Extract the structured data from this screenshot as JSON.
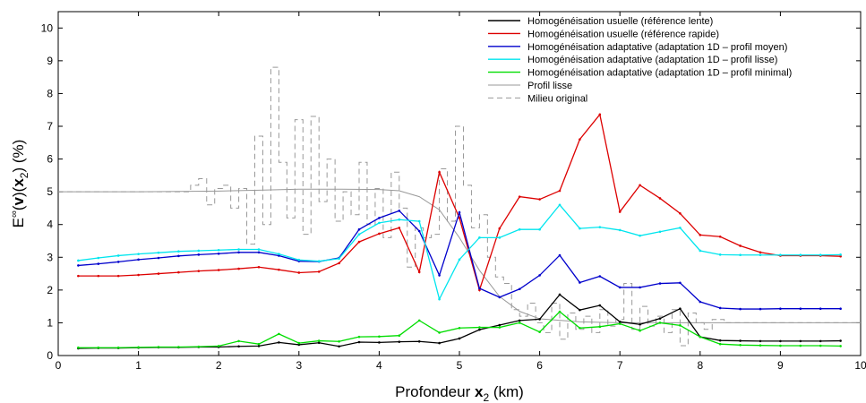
{
  "chart_data": {
    "type": "line",
    "xlabel": "Profondeur x2 (km)",
    "ylabel": "E∞(v)(x2) (%)",
    "xlim": [
      0,
      10
    ],
    "ylim": [
      0,
      10.5
    ],
    "x_ticks": [
      0,
      1,
      2,
      3,
      4,
      5,
      6,
      7,
      8,
      9,
      10
    ],
    "y_ticks": [
      0,
      1,
      2,
      3,
      4,
      5,
      6,
      7,
      8,
      9,
      10
    ],
    "grid": false,
    "legend_position": "top-right",
    "x": [
      0.25,
      0.5,
      0.75,
      1.0,
      1.25,
      1.5,
      1.75,
      2.0,
      2.25,
      2.5,
      2.75,
      3.0,
      3.25,
      3.5,
      3.75,
      4.0,
      4.25,
      4.5,
      4.75,
      5.0,
      5.25,
      5.5,
      5.75,
      6.0,
      6.25,
      6.5,
      6.75,
      7.0,
      7.25,
      7.5,
      7.75,
      8.0,
      8.25,
      8.5,
      8.75,
      9.0,
      9.25,
      9.5,
      9.75
    ],
    "series": [
      {
        "name": "Homogénéisation usuelle (référence lente)",
        "color": "#000000",
        "values": [
          0.22,
          0.23,
          0.23,
          0.24,
          0.25,
          0.25,
          0.26,
          0.26,
          0.28,
          0.29,
          0.4,
          0.33,
          0.39,
          0.28,
          0.41,
          0.4,
          0.42,
          0.43,
          0.38,
          0.52,
          0.79,
          0.93,
          1.07,
          1.11,
          1.86,
          1.39,
          1.53,
          1.03,
          0.95,
          1.13,
          1.43,
          0.57,
          0.46,
          0.45,
          0.44,
          0.44,
          0.44,
          0.44,
          0.45
        ]
      },
      {
        "name": "Homogénéisation usuelle (référence rapide)",
        "color": "#dd0000",
        "values": [
          2.43,
          2.43,
          2.43,
          2.46,
          2.5,
          2.54,
          2.58,
          2.61,
          2.65,
          2.7,
          2.62,
          2.53,
          2.56,
          2.82,
          3.47,
          3.72,
          3.9,
          2.55,
          5.6,
          4.2,
          2.0,
          3.88,
          4.85,
          4.77,
          5.03,
          6.6,
          7.36,
          4.39,
          5.2,
          4.8,
          4.34,
          3.68,
          3.63,
          3.35,
          3.15,
          3.05,
          3.05,
          3.05,
          3.03
        ]
      },
      {
        "name": "Homogénéisation adaptative (adaptation 1D – profil moyen)",
        "color": "#0000cc",
        "values": [
          2.75,
          2.8,
          2.86,
          2.93,
          2.98,
          3.04,
          3.08,
          3.11,
          3.15,
          3.15,
          3.05,
          2.88,
          2.87,
          2.98,
          3.85,
          4.2,
          4.42,
          3.8,
          2.45,
          4.37,
          2.05,
          1.78,
          2.03,
          2.45,
          3.06,
          2.23,
          2.42,
          2.08,
          2.08,
          2.2,
          2.22,
          1.64,
          1.45,
          1.42,
          1.42,
          1.43,
          1.43,
          1.43,
          1.43
        ]
      },
      {
        "name": "Homogénéisation adaptative (adaptation 1D – profil lisse)",
        "color": "#00e5ee",
        "values": [
          2.9,
          2.98,
          3.05,
          3.1,
          3.14,
          3.18,
          3.2,
          3.22,
          3.24,
          3.24,
          3.1,
          2.92,
          2.88,
          2.96,
          3.7,
          4.05,
          4.15,
          4.1,
          1.72,
          2.93,
          3.6,
          3.6,
          3.85,
          3.85,
          4.6,
          3.88,
          3.92,
          3.83,
          3.66,
          3.78,
          3.9,
          3.2,
          3.08,
          3.07,
          3.07,
          3.07,
          3.07,
          3.07,
          3.08
        ]
      },
      {
        "name": "Homogénéisation adaptative (adaptation 1D – profil minimal)",
        "color": "#00dd00",
        "values": [
          0.24,
          0.24,
          0.24,
          0.25,
          0.26,
          0.26,
          0.27,
          0.29,
          0.44,
          0.35,
          0.66,
          0.38,
          0.45,
          0.43,
          0.57,
          0.58,
          0.61,
          1.07,
          0.7,
          0.84,
          0.86,
          0.86,
          1.0,
          0.72,
          1.34,
          0.84,
          0.88,
          0.97,
          0.76,
          1.0,
          0.92,
          0.57,
          0.35,
          0.32,
          0.31,
          0.3,
          0.3,
          0.3,
          0.29
        ]
      },
      {
        "name": "Profil lisse",
        "color": "#999999",
        "style": "solid",
        "x": [
          0,
          1.0,
          2.0,
          2.5,
          3.0,
          3.5,
          4.0,
          4.25,
          4.5,
          4.75,
          5.0,
          5.25,
          5.5,
          5.75,
          6.0,
          6.5,
          7.0,
          8.0,
          10.0
        ],
        "values": [
          5.0,
          5.0,
          5.02,
          5.05,
          5.08,
          5.08,
          5.07,
          5.03,
          4.85,
          4.45,
          3.6,
          2.6,
          1.8,
          1.35,
          1.12,
          1.03,
          1.0,
          1.0,
          1.0
        ]
      },
      {
        "name": "Milieu original",
        "color": "#999999",
        "style": "dashed",
        "x": [
          0,
          1.55,
          1.65,
          1.75,
          1.85,
          1.95,
          2.05,
          2.15,
          2.25,
          2.35,
          2.45,
          2.55,
          2.65,
          2.75,
          2.85,
          2.95,
          3.05,
          3.15,
          3.25,
          3.35,
          3.45,
          3.55,
          3.65,
          3.75,
          3.85,
          3.95,
          4.05,
          4.15,
          4.25,
          4.35,
          4.45,
          4.55,
          4.65,
          4.75,
          4.85,
          4.95,
          5.05,
          5.15,
          5.25,
          5.35,
          5.45,
          5.55,
          5.65,
          5.75,
          5.85,
          5.95,
          6.05,
          6.15,
          6.25,
          6.35,
          6.45,
          6.55,
          6.65,
          6.75,
          6.85,
          6.95,
          7.05,
          7.15,
          7.25,
          7.35,
          7.45,
          7.55,
          7.65,
          7.75,
          7.85,
          7.95,
          8.05,
          8.15,
          8.3,
          10.0
        ],
        "values": [
          5.0,
          5.0,
          5.2,
          5.4,
          4.6,
          5.1,
          5.2,
          4.5,
          5.1,
          3.4,
          6.7,
          4.0,
          8.8,
          5.9,
          4.2,
          7.2,
          3.7,
          7.3,
          4.7,
          6.0,
          4.1,
          5.0,
          4.3,
          5.9,
          4.0,
          5.1,
          3.6,
          5.6,
          4.5,
          2.7,
          3.9,
          3.6,
          3.7,
          5.7,
          4.1,
          7.0,
          5.2,
          3.9,
          4.3,
          3.0,
          2.4,
          2.2,
          1.4,
          1.2,
          1.6,
          1.0,
          0.7,
          1.6,
          0.5,
          1.3,
          0.8,
          1.2,
          0.7,
          1.4,
          0.9,
          1.1,
          2.2,
          0.8,
          1.5,
          0.9,
          1.2,
          0.7,
          1.4,
          0.3,
          1.3,
          1.0,
          0.8,
          1.1,
          1.0,
          1.0
        ]
      }
    ]
  }
}
